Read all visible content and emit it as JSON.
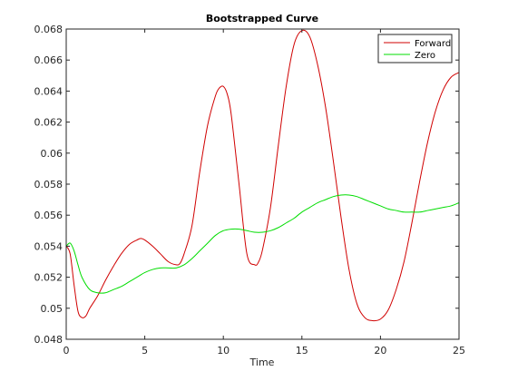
{
  "chart_data": {
    "type": "line",
    "title": "Bootstrapped Curve",
    "xlabel": "Time",
    "ylabel": "",
    "xlim": [
      0,
      25
    ],
    "ylim": [
      0.048,
      0.068
    ],
    "xticks": [
      "0",
      "5",
      "10",
      "15",
      "20",
      "25"
    ],
    "yticks": [
      "0.048",
      "0.05",
      "0.052",
      "0.054",
      "0.056",
      "0.058",
      "0.06",
      "0.062",
      "0.064",
      "0.066",
      "0.068"
    ],
    "grid": false,
    "legend_position": "top-right",
    "series": [
      {
        "name": "Forward",
        "color": "#d00000",
        "x": [
          0,
          0.25,
          0.5,
          0.75,
          1,
          1.25,
          1.5,
          2,
          2.5,
          3,
          3.5,
          4,
          4.5,
          4.75,
          5,
          5.5,
          6,
          6.5,
          7,
          7.25,
          7.5,
          8,
          8.5,
          9,
          9.5,
          9.75,
          10,
          10.25,
          10.5,
          11,
          11.5,
          12,
          12.25,
          12.5,
          13,
          13.5,
          14,
          14.5,
          15,
          15.5,
          16,
          16.5,
          17,
          17.5,
          18,
          18.5,
          19,
          19.5,
          20,
          20.5,
          21,
          21.5,
          22,
          22.5,
          23,
          23.5,
          24,
          24.5,
          25
        ],
        "values": [
          0.054,
          0.0535,
          0.0515,
          0.0498,
          0.0494,
          0.0495,
          0.05,
          0.0508,
          0.0518,
          0.0527,
          0.0535,
          0.0541,
          0.0544,
          0.0545,
          0.0544,
          0.054,
          0.0535,
          0.053,
          0.0528,
          0.0529,
          0.0535,
          0.0553,
          0.0588,
          0.0618,
          0.0637,
          0.0642,
          0.0643,
          0.0638,
          0.0625,
          0.058,
          0.0535,
          0.0528,
          0.053,
          0.0538,
          0.0565,
          0.0605,
          0.0643,
          0.067,
          0.0679,
          0.0675,
          0.0657,
          0.063,
          0.0595,
          0.0558,
          0.0525,
          0.0503,
          0.0494,
          0.0492,
          0.0493,
          0.0499,
          0.0512,
          0.053,
          0.0555,
          0.0582,
          0.0607,
          0.0627,
          0.0641,
          0.0649,
          0.0652
        ]
      },
      {
        "name": "Zero",
        "color": "#00dd00",
        "x": [
          0,
          0.25,
          0.5,
          0.75,
          1,
          1.5,
          2,
          2.5,
          3,
          3.5,
          4,
          4.5,
          5,
          5.5,
          6,
          6.5,
          7,
          7.5,
          8,
          8.5,
          9,
          9.5,
          10,
          10.5,
          11,
          11.5,
          12,
          12.5,
          13,
          13.5,
          14,
          14.5,
          15,
          15.5,
          16,
          16.5,
          17,
          17.5,
          18,
          18.5,
          19,
          19.5,
          20,
          20.5,
          21,
          21.5,
          22,
          22.5,
          23,
          23.5,
          24,
          24.5,
          25
        ],
        "values": [
          0.054,
          0.0542,
          0.0537,
          0.0528,
          0.052,
          0.0512,
          0.051,
          0.051,
          0.0512,
          0.0514,
          0.0517,
          0.052,
          0.0523,
          0.0525,
          0.0526,
          0.0526,
          0.0526,
          0.0528,
          0.0532,
          0.0537,
          0.0542,
          0.0547,
          0.055,
          0.0551,
          0.0551,
          0.055,
          0.0549,
          0.0549,
          0.055,
          0.0552,
          0.0555,
          0.0558,
          0.0562,
          0.0565,
          0.0568,
          0.057,
          0.0572,
          0.0573,
          0.0573,
          0.0572,
          0.057,
          0.0568,
          0.0566,
          0.0564,
          0.0563,
          0.0562,
          0.0562,
          0.0562,
          0.0563,
          0.0564,
          0.0565,
          0.0566,
          0.0568
        ]
      }
    ]
  }
}
